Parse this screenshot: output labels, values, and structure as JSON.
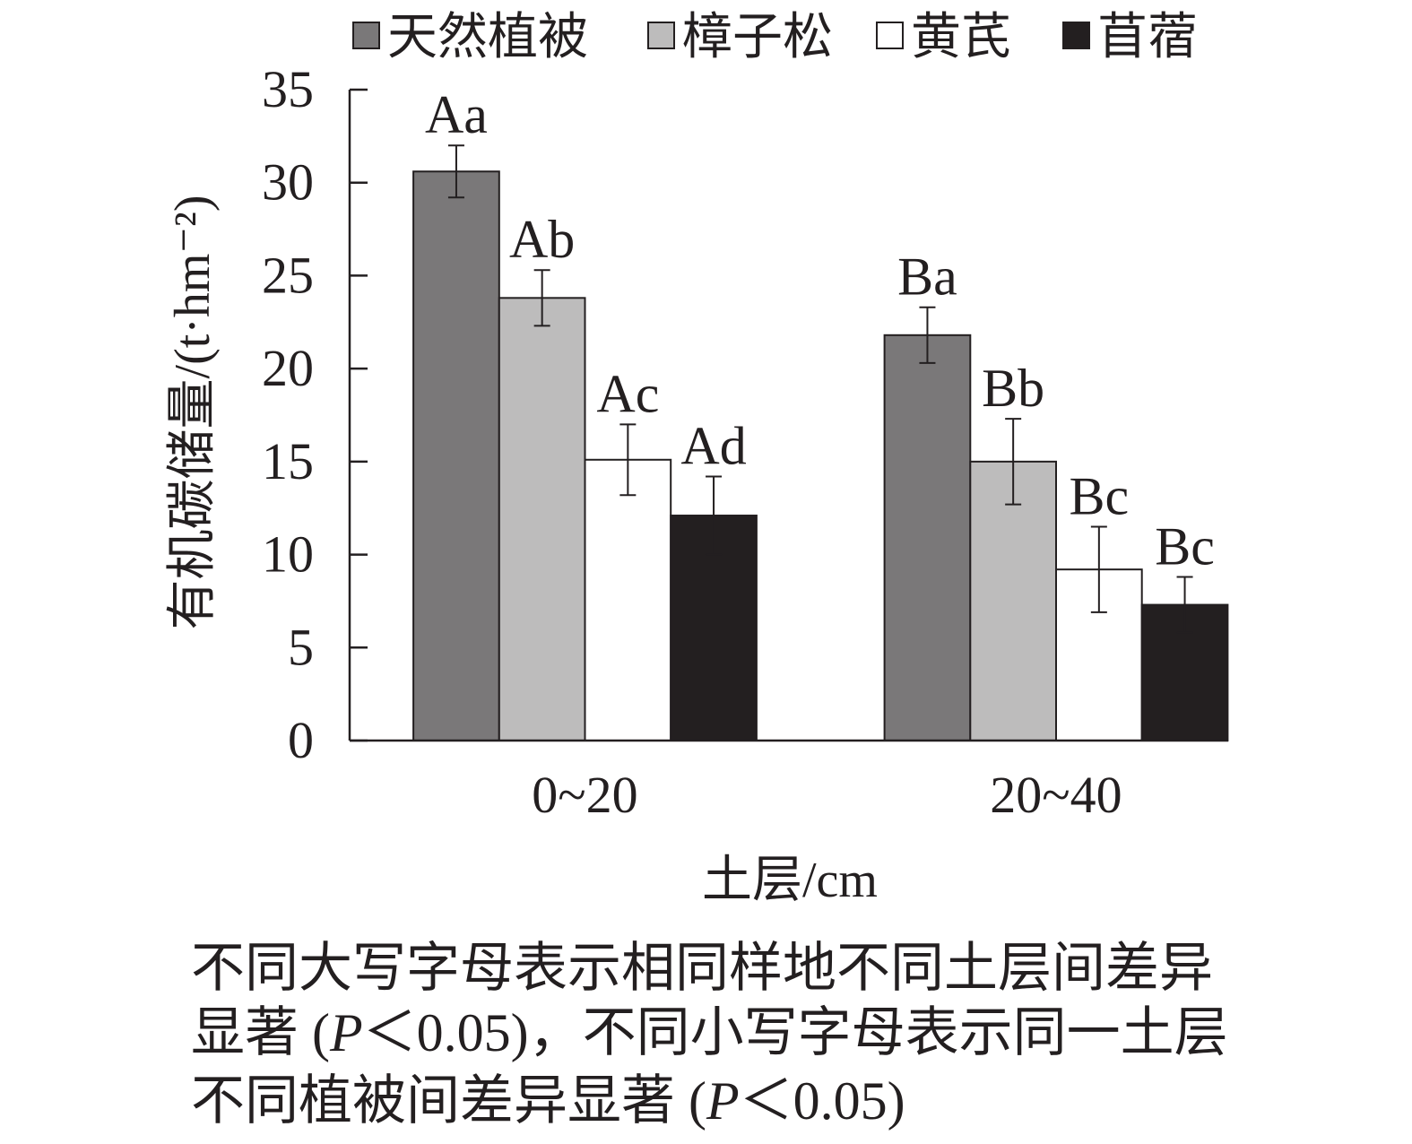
{
  "chart_data": {
    "type": "bar",
    "categories": [
      "0~20",
      "20~40"
    ],
    "series": [
      {
        "name": "天然植被",
        "values": [
          30.6,
          21.8
        ],
        "errors": [
          1.4,
          1.5
        ],
        "significance": [
          "Aa",
          "Ba"
        ],
        "color": "#7a7879"
      },
      {
        "name": "樟子松",
        "values": [
          23.8,
          15.0
        ],
        "errors": [
          1.5,
          2.3
        ],
        "significance": [
          "Ab",
          "Bb"
        ],
        "color": "#bdbcbc"
      },
      {
        "name": "黄芪",
        "values": [
          15.1,
          9.2
        ],
        "errors": [
          1.9,
          2.3
        ],
        "significance": [
          "Ac",
          "Bc"
        ],
        "color": "#ffffff"
      },
      {
        "name": "苜蓿",
        "values": [
          12.1,
          7.3
        ],
        "errors": [
          2.1,
          1.5
        ],
        "significance": [
          "Ad",
          "Bc"
        ],
        "color": "#231f20"
      }
    ],
    "xlabel": "土层/cm",
    "ylabel": "有机碳储量/(t·hm⁻²)",
    "ylim": [
      0,
      35
    ],
    "yticks": [
      0,
      5,
      10,
      15,
      20,
      25,
      30,
      35
    ],
    "legend": "top",
    "grid": false,
    "error_bars": true
  },
  "caption": {
    "lines": [
      [
        "不同大写字母表示相同样地不同土层间差异"
      ],
      [
        "显著 (",
        "P",
        "＜0.05)，不同小写字母表示同一土层"
      ],
      [
        "不同植被间差异显著 (",
        "P",
        "＜0.05)"
      ]
    ]
  },
  "colors": {
    "axis": "#231f20",
    "background": "#ffffff"
  }
}
